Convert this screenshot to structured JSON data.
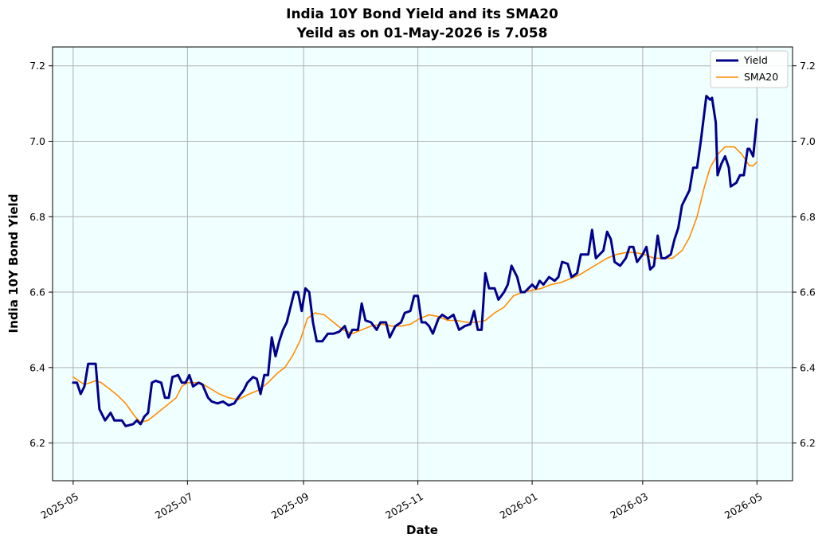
{
  "chart_data": {
    "type": "line",
    "title_line1": "India 10Y Bond Yield and its SMA20",
    "title_line2": "Yeild as on 01-May-2026 is 7.058",
    "xlabel": "Date",
    "ylabel": "India 10Y Bond Yield",
    "x_range": [
      "2025-04-20",
      "2026-05-20"
    ],
    "ylim": [
      6.1,
      7.25
    ],
    "x_ticks": [
      "2025-05-01",
      "2025-07-01",
      "2025-09-01",
      "2025-11-01",
      "2026-01-01",
      "2026-03-01",
      "2026-05-01"
    ],
    "x_tick_labels": [
      "2025-05",
      "2025-07",
      "2025-09",
      "2025-11",
      "2026-01",
      "2026-03",
      "2026-05"
    ],
    "y_ticks": [
      6.2,
      6.4,
      6.6,
      6.8,
      7.0,
      7.2
    ],
    "y_tick_labels": [
      "6.2",
      "6.4",
      "6.6",
      "6.8",
      "7.0",
      "7.2"
    ],
    "grid": true,
    "background_color": "#f0ffff",
    "legend_position": "top-right",
    "series": [
      {
        "name": "Yield",
        "color": "#00008b",
        "points": [
          [
            "2025-05-01",
            6.36
          ],
          [
            "2025-05-03",
            6.36
          ],
          [
            "2025-05-05",
            6.33
          ],
          [
            "2025-05-07",
            6.35
          ],
          [
            "2025-05-09",
            6.41
          ],
          [
            "2025-05-13",
            6.41
          ],
          [
            "2025-05-15",
            6.29
          ],
          [
            "2025-05-18",
            6.26
          ],
          [
            "2025-05-21",
            6.28
          ],
          [
            "2025-05-23",
            6.26
          ],
          [
            "2025-05-27",
            6.26
          ],
          [
            "2025-05-29",
            6.245
          ],
          [
            "2025-06-02",
            6.25
          ],
          [
            "2025-06-04",
            6.26
          ],
          [
            "2025-06-06",
            6.25
          ],
          [
            "2025-06-08",
            6.27
          ],
          [
            "2025-06-10",
            6.28
          ],
          [
            "2025-06-12",
            6.36
          ],
          [
            "2025-06-14",
            6.365
          ],
          [
            "2025-06-17",
            6.36
          ],
          [
            "2025-06-19",
            6.32
          ],
          [
            "2025-06-21",
            6.32
          ],
          [
            "2025-06-23",
            6.375
          ],
          [
            "2025-06-26",
            6.38
          ],
          [
            "2025-06-28",
            6.36
          ],
          [
            "2025-06-30",
            6.36
          ],
          [
            "2025-07-02",
            6.38
          ],
          [
            "2025-07-04",
            6.35
          ],
          [
            "2025-07-07",
            6.36
          ],
          [
            "2025-07-09",
            6.355
          ],
          [
            "2025-07-12",
            6.32
          ],
          [
            "2025-07-14",
            6.31
          ],
          [
            "2025-07-17",
            6.305
          ],
          [
            "2025-07-20",
            6.31
          ],
          [
            "2025-07-23",
            6.3
          ],
          [
            "2025-07-26",
            6.305
          ],
          [
            "2025-07-28",
            6.32
          ],
          [
            "2025-07-31",
            6.34
          ],
          [
            "2025-08-02",
            6.36
          ],
          [
            "2025-08-05",
            6.375
          ],
          [
            "2025-08-07",
            6.37
          ],
          [
            "2025-08-09",
            6.33
          ],
          [
            "2025-08-11",
            6.38
          ],
          [
            "2025-08-13",
            6.38
          ],
          [
            "2025-08-15",
            6.48
          ],
          [
            "2025-08-17",
            6.43
          ],
          [
            "2025-08-19",
            6.47
          ],
          [
            "2025-08-21",
            6.5
          ],
          [
            "2025-08-23",
            6.52
          ],
          [
            "2025-08-25",
            6.56
          ],
          [
            "2025-08-27",
            6.6
          ],
          [
            "2025-08-29",
            6.6
          ],
          [
            "2025-08-31",
            6.55
          ],
          [
            "2025-09-02",
            6.61
          ],
          [
            "2025-09-04",
            6.6
          ],
          [
            "2025-09-06",
            6.52
          ],
          [
            "2025-09-08",
            6.47
          ],
          [
            "2025-09-11",
            6.47
          ],
          [
            "2025-09-14",
            6.49
          ],
          [
            "2025-09-17",
            6.49
          ],
          [
            "2025-09-20",
            6.495
          ],
          [
            "2025-09-23",
            6.51
          ],
          [
            "2025-09-25",
            6.48
          ],
          [
            "2025-09-27",
            6.5
          ],
          [
            "2025-09-30",
            6.5
          ],
          [
            "2025-10-02",
            6.57
          ],
          [
            "2025-10-04",
            6.525
          ],
          [
            "2025-10-07",
            6.52
          ],
          [
            "2025-10-10",
            6.5
          ],
          [
            "2025-10-12",
            6.52
          ],
          [
            "2025-10-15",
            6.52
          ],
          [
            "2025-10-17",
            6.48
          ],
          [
            "2025-10-20",
            6.51
          ],
          [
            "2025-10-23",
            6.52
          ],
          [
            "2025-10-25",
            6.545
          ],
          [
            "2025-10-28",
            6.55
          ],
          [
            "2025-10-30",
            6.59
          ],
          [
            "2025-11-01",
            6.59
          ],
          [
            "2025-11-03",
            6.52
          ],
          [
            "2025-11-05",
            6.52
          ],
          [
            "2025-11-07",
            6.51
          ],
          [
            "2025-11-09",
            6.49
          ],
          [
            "2025-11-12",
            6.53
          ],
          [
            "2025-11-14",
            6.54
          ],
          [
            "2025-11-17",
            6.53
          ],
          [
            "2025-11-20",
            6.54
          ],
          [
            "2025-11-23",
            6.5
          ],
          [
            "2025-11-26",
            6.51
          ],
          [
            "2025-11-29",
            6.515
          ],
          [
            "2025-12-01",
            6.55
          ],
          [
            "2025-12-03",
            6.5
          ],
          [
            "2025-12-05",
            6.5
          ],
          [
            "2025-12-07",
            6.65
          ],
          [
            "2025-12-09",
            6.61
          ],
          [
            "2025-12-12",
            6.61
          ],
          [
            "2025-12-14",
            6.58
          ],
          [
            "2025-12-17",
            6.6
          ],
          [
            "2025-12-19",
            6.62
          ],
          [
            "2025-12-21",
            6.67
          ],
          [
            "2025-12-24",
            6.64
          ],
          [
            "2025-12-26",
            6.6
          ],
          [
            "2025-12-28",
            6.6
          ],
          [
            "2026-01-01",
            6.62
          ],
          [
            "2026-01-03",
            6.61
          ],
          [
            "2026-01-05",
            6.63
          ],
          [
            "2026-01-07",
            6.62
          ],
          [
            "2026-01-10",
            6.64
          ],
          [
            "2026-01-13",
            6.63
          ],
          [
            "2026-01-15",
            6.64
          ],
          [
            "2026-01-17",
            6.68
          ],
          [
            "2026-01-20",
            6.675
          ],
          [
            "2026-01-22",
            6.64
          ],
          [
            "2026-01-25",
            6.65
          ],
          [
            "2026-01-27",
            6.7
          ],
          [
            "2026-01-31",
            6.7
          ],
          [
            "2026-02-02",
            6.765
          ],
          [
            "2026-02-04",
            6.69
          ],
          [
            "2026-02-06",
            6.7
          ],
          [
            "2026-02-08",
            6.71
          ],
          [
            "2026-02-10",
            6.76
          ],
          [
            "2026-02-12",
            6.74
          ],
          [
            "2026-02-14",
            6.68
          ],
          [
            "2026-02-17",
            6.67
          ],
          [
            "2026-02-20",
            6.69
          ],
          [
            "2026-02-22",
            6.72
          ],
          [
            "2026-02-24",
            6.72
          ],
          [
            "2026-02-26",
            6.68
          ],
          [
            "2026-03-01",
            6.7
          ],
          [
            "2026-03-03",
            6.72
          ],
          [
            "2026-03-05",
            6.66
          ],
          [
            "2026-03-07",
            6.67
          ],
          [
            "2026-03-09",
            6.75
          ],
          [
            "2026-03-11",
            6.69
          ],
          [
            "2026-03-13",
            6.69
          ],
          [
            "2026-03-16",
            6.7
          ],
          [
            "2026-03-18",
            6.74
          ],
          [
            "2026-03-20",
            6.77
          ],
          [
            "2026-03-22",
            6.83
          ],
          [
            "2026-03-24",
            6.85
          ],
          [
            "2026-03-26",
            6.87
          ],
          [
            "2026-03-28",
            6.93
          ],
          [
            "2026-03-30",
            6.93
          ],
          [
            "2026-04-01",
            7.0
          ],
          [
            "2026-04-03",
            7.08
          ],
          [
            "2026-04-04",
            7.12
          ],
          [
            "2026-04-06",
            7.11
          ],
          [
            "2026-04-07",
            7.115
          ],
          [
            "2026-04-09",
            7.05
          ],
          [
            "2026-04-10",
            6.91
          ],
          [
            "2026-04-12",
            6.94
          ],
          [
            "2026-04-14",
            6.96
          ],
          [
            "2026-04-16",
            6.93
          ],
          [
            "2026-04-17",
            6.88
          ],
          [
            "2026-04-20",
            6.89
          ],
          [
            "2026-04-22",
            6.91
          ],
          [
            "2026-04-24",
            6.91
          ],
          [
            "2026-04-26",
            6.98
          ],
          [
            "2026-04-27",
            6.98
          ],
          [
            "2026-04-29",
            6.96
          ],
          [
            "2026-05-01",
            7.058
          ]
        ]
      },
      {
        "name": "SMA20",
        "color": "#ff8c00",
        "points": [
          [
            "2025-05-01",
            6.375
          ],
          [
            "2025-05-07",
            6.355
          ],
          [
            "2025-05-13",
            6.365
          ],
          [
            "2025-05-16",
            6.36
          ],
          [
            "2025-05-20",
            6.345
          ],
          [
            "2025-05-25",
            6.325
          ],
          [
            "2025-05-29",
            6.305
          ],
          [
            "2025-06-03",
            6.27
          ],
          [
            "2025-06-06",
            6.255
          ],
          [
            "2025-06-10",
            6.26
          ],
          [
            "2025-06-15",
            6.28
          ],
          [
            "2025-06-20",
            6.3
          ],
          [
            "2025-06-25",
            6.32
          ],
          [
            "2025-06-28",
            6.35
          ],
          [
            "2025-07-01",
            6.36
          ],
          [
            "2025-07-05",
            6.36
          ],
          [
            "2025-07-08",
            6.36
          ],
          [
            "2025-07-13",
            6.345
          ],
          [
            "2025-07-18",
            6.33
          ],
          [
            "2025-07-23",
            6.32
          ],
          [
            "2025-07-28",
            6.315
          ],
          [
            "2025-08-03",
            6.33
          ],
          [
            "2025-08-08",
            6.34
          ],
          [
            "2025-08-13",
            6.36
          ],
          [
            "2025-08-18",
            6.385
          ],
          [
            "2025-08-22",
            6.4
          ],
          [
            "2025-08-26",
            6.43
          ],
          [
            "2025-08-30",
            6.47
          ],
          [
            "2025-09-03",
            6.53
          ],
          [
            "2025-09-07",
            6.545
          ],
          [
            "2025-09-12",
            6.54
          ],
          [
            "2025-09-17",
            6.52
          ],
          [
            "2025-09-22",
            6.5
          ],
          [
            "2025-09-27",
            6.49
          ],
          [
            "2025-10-02",
            6.5
          ],
          [
            "2025-10-07",
            6.51
          ],
          [
            "2025-10-13",
            6.515
          ],
          [
            "2025-10-18",
            6.51
          ],
          [
            "2025-10-23",
            6.51
          ],
          [
            "2025-10-28",
            6.515
          ],
          [
            "2025-11-02",
            6.53
          ],
          [
            "2025-11-07",
            6.54
          ],
          [
            "2025-11-12",
            6.535
          ],
          [
            "2025-11-17",
            6.525
          ],
          [
            "2025-11-22",
            6.525
          ],
          [
            "2025-11-27",
            6.52
          ],
          [
            "2025-12-02",
            6.52
          ],
          [
            "2025-12-07",
            6.525
          ],
          [
            "2025-12-12",
            6.545
          ],
          [
            "2025-12-17",
            6.56
          ],
          [
            "2025-12-22",
            6.59
          ],
          [
            "2025-12-27",
            6.6
          ],
          [
            "2026-01-01",
            6.605
          ],
          [
            "2026-01-06",
            6.61
          ],
          [
            "2026-01-11",
            6.62
          ],
          [
            "2026-01-16",
            6.625
          ],
          [
            "2026-01-21",
            6.635
          ],
          [
            "2026-01-26",
            6.645
          ],
          [
            "2026-01-31",
            6.66
          ],
          [
            "2026-02-05",
            6.675
          ],
          [
            "2026-02-10",
            6.69
          ],
          [
            "2026-02-15",
            6.7
          ],
          [
            "2026-02-20",
            6.705
          ],
          [
            "2026-02-25",
            6.705
          ],
          [
            "2026-03-02",
            6.7
          ],
          [
            "2026-03-07",
            6.69
          ],
          [
            "2026-03-12",
            6.69
          ],
          [
            "2026-03-17",
            6.69
          ],
          [
            "2026-03-22",
            6.71
          ],
          [
            "2026-03-26",
            6.745
          ],
          [
            "2026-03-30",
            6.8
          ],
          [
            "2026-04-03",
            6.88
          ],
          [
            "2026-04-06",
            6.93
          ],
          [
            "2026-04-10",
            6.965
          ],
          [
            "2026-04-14",
            6.985
          ],
          [
            "2026-04-19",
            6.985
          ],
          [
            "2026-04-23",
            6.965
          ],
          [
            "2026-04-27",
            6.935
          ],
          [
            "2026-04-29",
            6.935
          ],
          [
            "2026-05-01",
            6.945
          ]
        ]
      }
    ]
  }
}
